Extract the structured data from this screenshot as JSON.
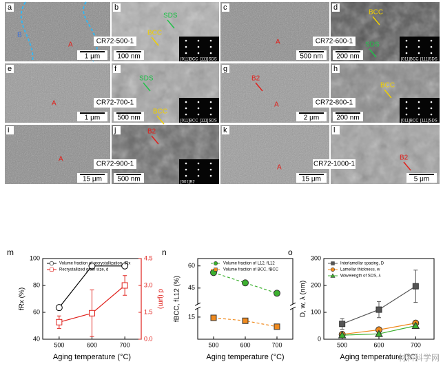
{
  "micrographs": [
    {
      "panel": "a",
      "labels": [
        "A",
        "B"
      ],
      "scale_bar": "1 μm"
    },
    {
      "panel": "b",
      "labels": [
        "SDS",
        "BCC"
      ],
      "scale_bar": "100 nm",
      "sample": "CR72-500-1",
      "zone_axes": [
        "[011]BCC",
        "[111]SDS"
      ]
    },
    {
      "panel": "c",
      "labels": [
        "A"
      ],
      "scale_bar": "500 nm"
    },
    {
      "panel": "d",
      "labels": [
        "BCC",
        "SDS"
      ],
      "scale_bar": "200 nm",
      "sample": "CR72-600-1",
      "zone_axes": [
        "[011]BCC",
        "[111]SDS"
      ]
    },
    {
      "panel": "e",
      "labels": [
        "A"
      ],
      "scale_bar": "1 μm"
    },
    {
      "panel": "f",
      "labels": [
        "SDS",
        "BCC"
      ],
      "scale_bar": "500 nm",
      "sample": "CR72-700-1",
      "zone_axes": [
        "[011]BCC",
        "[111]SDS"
      ]
    },
    {
      "panel": "g",
      "labels": [
        "B2",
        "A"
      ],
      "scale_bar": "2 μm"
    },
    {
      "panel": "h",
      "labels": [
        "BCC"
      ],
      "scale_bar": "200 nm",
      "sample": "CR72-800-1",
      "zone_axes": [
        "[011]BCC",
        "[111]SDS"
      ]
    },
    {
      "panel": "i",
      "labels": [
        "A"
      ],
      "scale_bar": "15 μm"
    },
    {
      "panel": "j",
      "labels": [
        "B2"
      ],
      "scale_bar": "500 nm",
      "sample": "CR72-900-1",
      "zone_axes": [
        "[001]B2"
      ]
    },
    {
      "panel": "k",
      "labels": [
        "A"
      ],
      "scale_bar": "15 μm"
    },
    {
      "panel": "l",
      "labels": [
        "B2"
      ],
      "scale_bar": "5 μm",
      "sample": "CR72-1000-1"
    }
  ],
  "chart_data": [
    {
      "type": "line",
      "panel": "m",
      "x_label": "Aging temperature (°C)",
      "y_label": "fRx (%)",
      "y2_label": "d (μm)",
      "x": [
        500,
        600,
        700
      ],
      "xlim": [
        450,
        750
      ],
      "xticks": [
        500,
        600,
        700
      ],
      "ylim": [
        40,
        100
      ],
      "yticks": [
        40,
        60,
        80,
        100
      ],
      "y2lim": [
        0,
        4.5
      ],
      "y2ticks": [
        {
          "value": 0,
          "label": "0.0"
        },
        1.5,
        {
          "value": 3,
          "label": "3.0"
        },
        4.5
      ],
      "legend": "top-left",
      "series": [
        {
          "name": "Volume fraction of recrystallization, fRx",
          "color": "#000000",
          "marker": "circle",
          "values": [
            63.5,
            94.5,
            94.5
          ]
        },
        {
          "name": "Recrystallized grain size, d",
          "color": "#e0201b",
          "marker": "square",
          "axis": "y2",
          "values": [
            0.95,
            1.45,
            3.0
          ],
          "errors": [
            0.35,
            1.3,
            0.55
          ]
        }
      ]
    },
    {
      "type": "line",
      "panel": "n",
      "x_label": "Aging temperature (°C)",
      "y_label": "fBCC, fL12 (%)",
      "x": [
        500,
        600,
        700
      ],
      "xlim": [
        450,
        750
      ],
      "xticks": [
        500,
        600,
        700
      ],
      "ylim": [
        0,
        65
      ],
      "ybreak": [
        20,
        35
      ],
      "yticks": [
        15,
        45,
        60
      ],
      "linestyle": "dashed",
      "legend": "top-center",
      "series": [
        {
          "name": "Volume fraction of L12, fL12",
          "color": "#3cb02f",
          "marker": "circle",
          "values": [
            55.5,
            48.5,
            41.5
          ]
        },
        {
          "name": "Volume fraction of BCC, fBCC",
          "color": "#f08a1d",
          "marker": "square",
          "values": [
            14.5,
            12.5,
            8.5
          ]
        }
      ]
    },
    {
      "type": "line",
      "panel": "o",
      "x_label": "Aging temperature (°C)",
      "y_label": "D, w, λ (nm)",
      "x": [
        500,
        600,
        700
      ],
      "xlim": [
        450,
        750
      ],
      "xticks": [
        500,
        600,
        700
      ],
      "ylim": [
        0,
        300
      ],
      "yticks": [
        0,
        100,
        200,
        300
      ],
      "legend": "top-left",
      "series": [
        {
          "name": "Interlamellar spacing, D",
          "color": "#555555",
          "marker": "square",
          "values": [
            57,
            110,
            197
          ],
          "errors": [
            20,
            30,
            60
          ]
        },
        {
          "name": "Lamellar thickness, w",
          "color": "#f08a1d",
          "marker": "circle",
          "values": [
            18,
            35,
            60
          ],
          "errors": [
            5,
            5,
            8
          ]
        },
        {
          "name": "Wavelength of SDS, λ",
          "color": "#3cb02f",
          "marker": "triangle",
          "values": [
            15,
            20,
            50
          ],
          "errors": [
            3,
            3,
            8
          ]
        }
      ]
    }
  ],
  "watermark": "材料科学网"
}
